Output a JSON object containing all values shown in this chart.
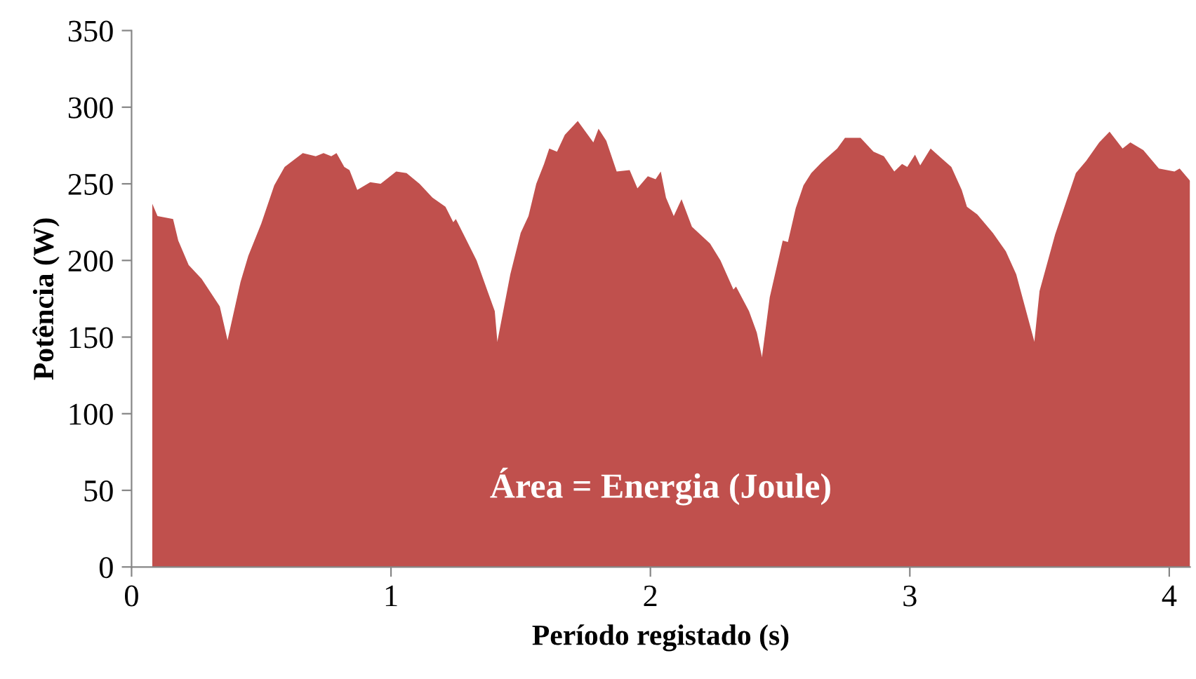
{
  "chart_data": {
    "type": "area",
    "xlabel": "Período registado (s)",
    "ylabel": "Potência (W)",
    "annotations": [
      "Área = Energia (Joule)"
    ],
    "xlim": [
      0,
      4.08
    ],
    "ylim": [
      0,
      350
    ],
    "yticks": [
      0,
      50,
      100,
      150,
      200,
      250,
      300,
      350
    ],
    "xticks": [
      0,
      1,
      2,
      3,
      4
    ],
    "grid": false,
    "legend": false,
    "series": [
      {
        "color": "#c0504d",
        "x": [
          0.08,
          0.1,
          0.16,
          0.18,
          0.22,
          0.27,
          0.34,
          0.37,
          0.42,
          0.45,
          0.5,
          0.55,
          0.59,
          0.66,
          0.71,
          0.74,
          0.77,
          0.79,
          0.82,
          0.84,
          0.87,
          0.92,
          0.96,
          1.02,
          1.06,
          1.11,
          1.16,
          1.21,
          1.24,
          1.25,
          1.28,
          1.33,
          1.37,
          1.4,
          1.41,
          1.46,
          1.5,
          1.53,
          1.56,
          1.59,
          1.61,
          1.64,
          1.67,
          1.72,
          1.78,
          1.8,
          1.83,
          1.87,
          1.92,
          1.95,
          1.99,
          2.02,
          2.04,
          2.06,
          2.09,
          2.12,
          2.16,
          2.23,
          2.27,
          2.32,
          2.33,
          2.38,
          2.41,
          2.43,
          2.46,
          2.51,
          2.53,
          2.56,
          2.59,
          2.62,
          2.66,
          2.72,
          2.75,
          2.81,
          2.86,
          2.9,
          2.94,
          2.97,
          2.99,
          3.02,
          3.04,
          3.08,
          3.12,
          3.16,
          3.2,
          3.22,
          3.26,
          3.32,
          3.37,
          3.41,
          3.48,
          3.5,
          3.56,
          3.59,
          3.64,
          3.68,
          3.73,
          3.77,
          3.82,
          3.85,
          3.9,
          3.96,
          4.02,
          4.04,
          4.08
        ],
        "values": [
          237,
          229,
          227,
          213,
          197,
          188,
          170,
          148,
          186,
          203,
          224,
          249,
          261,
          270,
          268,
          270,
          268,
          270,
          261,
          259,
          246,
          251,
          250,
          258,
          257,
          250,
          241,
          235,
          225,
          227,
          217,
          200,
          181,
          167,
          147,
          191,
          218,
          229,
          250,
          263,
          273,
          271,
          282,
          291,
          277,
          286,
          278,
          258,
          259,
          247,
          255,
          253,
          258,
          241,
          229,
          240,
          222,
          211,
          200,
          181,
          183,
          167,
          153,
          137,
          176,
          213,
          212,
          234,
          249,
          257,
          264,
          273,
          280,
          280,
          271,
          268,
          258,
          263,
          261,
          269,
          262,
          273,
          267,
          261,
          246,
          235,
          230,
          218,
          206,
          191,
          147,
          180,
          217,
          232,
          257,
          265,
          277,
          284,
          273,
          277,
          272,
          260,
          258,
          260,
          252
        ]
      }
    ]
  }
}
